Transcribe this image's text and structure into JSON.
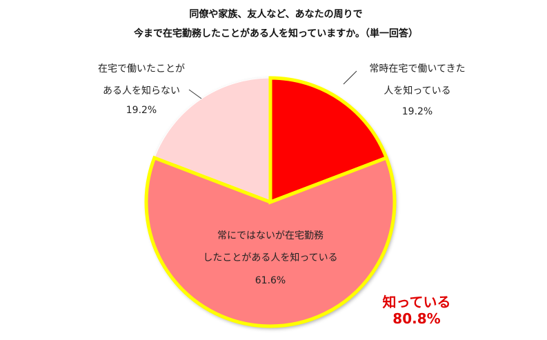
{
  "chart_data": {
    "type": "pie",
    "title": "同僚や家族、友人など、あなたの周りで",
    "subtitle": "今まで在宅勤務したことがある人を知っていますか。（単一回答）",
    "categories": [
      "常時在宅で働いてきた\n人を知っている",
      "常にではないが在宅勤務\nしたことがある人を知っている",
      "在宅で働いたことが\nある人を知らない"
    ],
    "values": [
      19.2,
      61.6,
      19.2
    ],
    "value_labels": [
      "19.2%",
      "61.6%",
      "19.2%"
    ],
    "colors": [
      "#ff0000",
      "#ff8080",
      "#ffd5d5"
    ],
    "highlight_color": "#ffff00",
    "highlighted": [
      true,
      true,
      false
    ],
    "annotations": [
      "知っている",
      "80.8%"
    ]
  }
}
